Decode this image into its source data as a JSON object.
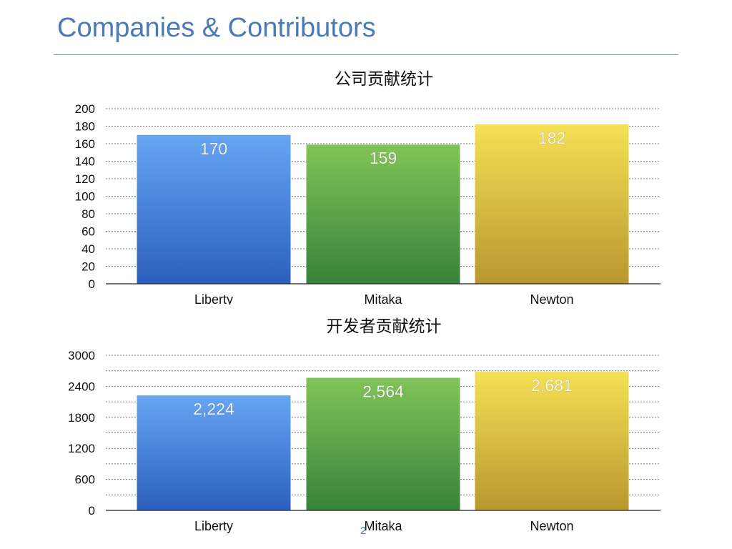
{
  "slide": {
    "title": "Companies & Contributors",
    "page_number": "2"
  },
  "chart_data": [
    {
      "type": "bar",
      "title": "公司贡献统计",
      "categories": [
        "Liberty",
        "Mitaka",
        "Newton"
      ],
      "values": [
        170,
        159,
        182
      ],
      "value_labels": [
        "170",
        "159",
        "182"
      ],
      "ylim": [
        0,
        200
      ],
      "yticks": [
        0,
        20,
        40,
        60,
        80,
        100,
        120,
        140,
        160,
        180,
        200
      ],
      "ytick_labels": [
        "0",
        "20",
        "40",
        "60",
        "80",
        "100",
        "120",
        "140",
        "160",
        "180",
        "200"
      ],
      "grid": true,
      "colors": [
        [
          "#66a6f2",
          "#2b5fbd"
        ],
        [
          "#82c458",
          "#37823a"
        ],
        [
          "#f5e055",
          "#b9972f"
        ]
      ]
    },
    {
      "type": "bar",
      "title": "开发者贡献统计",
      "categories": [
        "Liberty",
        "Mitaka",
        "Newton"
      ],
      "values": [
        2224,
        2564,
        2681
      ],
      "value_labels": [
        "2,224",
        "2,564",
        "2,681"
      ],
      "ylim": [
        0,
        3000
      ],
      "yticks": [
        0,
        600,
        1200,
        1800,
        2400,
        3000
      ],
      "ytick_labels": [
        "0",
        "600",
        "1200",
        "1800",
        "2400",
        "3000"
      ],
      "grid": true,
      "minor_grid": true,
      "colors": [
        [
          "#66a6f2",
          "#2b5fbd"
        ],
        [
          "#82c458",
          "#37823a"
        ],
        [
          "#f5e055",
          "#b9972f"
        ]
      ]
    }
  ]
}
